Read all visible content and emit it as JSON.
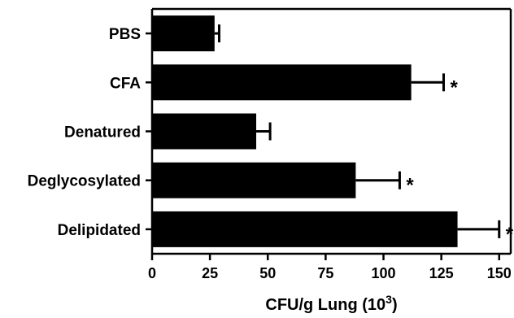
{
  "chart_data": {
    "type": "bar",
    "orientation": "horizontal",
    "categories": [
      "PBS",
      "CFA",
      "Denatured",
      "Deglycosylated",
      "Delipidated"
    ],
    "values": [
      27,
      112,
      45,
      88,
      132
    ],
    "errors": [
      2,
      14,
      6,
      19,
      18
    ],
    "significance": [
      "",
      "*",
      "",
      "*",
      "*"
    ],
    "xlabel": "CFU/g Lung (10",
    "xlabel_superscript": "3",
    "xlabel_suffix": ")",
    "xlim": [
      0,
      155
    ],
    "xticks": [
      "0",
      "25",
      "50",
      "75",
      "100",
      "125",
      "150"
    ],
    "grid": false,
    "bar_color": "#000000"
  }
}
